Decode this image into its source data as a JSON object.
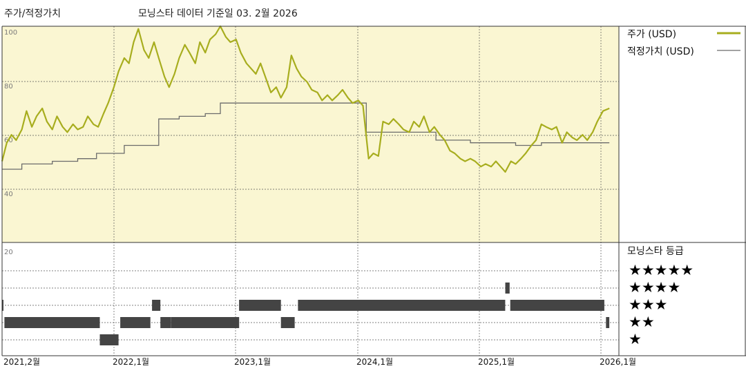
{
  "header": {
    "left_title": "주가/적정가치",
    "subtitle": "모닝스타 데이터 기준일 03. 2월 2026"
  },
  "legend": {
    "price_label": "주가 (USD)",
    "fair_value_label": "적정가치 (USD)",
    "rating_title": "모닝스타 등급"
  },
  "colors": {
    "price_line": "#a7ad1e",
    "fair_value_line": "#6b6b6b",
    "upper_panel_bg": "#faf6d2",
    "rating_bar": "#444444"
  },
  "chart_data": {
    "type": "line",
    "y_ticks": [
      "100",
      "80",
      "60",
      "40",
      "20"
    ],
    "x_ticks": [
      "2021,2월",
      "2022,1월",
      "2023,1월",
      "2024,1월",
      "2025,1월",
      "2026,1월"
    ],
    "x_range": [
      "2021-02",
      "2026-02"
    ],
    "y_range": [
      20,
      100
    ],
    "series": [
      {
        "name": "주가 (USD)",
        "points": [
          [
            "2021-02-01",
            49
          ],
          [
            "2021-02-15",
            56
          ],
          [
            "2021-03-01",
            59
          ],
          [
            "2021-03-15",
            57
          ],
          [
            "2021-04-01",
            61
          ],
          [
            "2021-04-15",
            68
          ],
          [
            "2021-05-01",
            62
          ],
          [
            "2021-05-15",
            66
          ],
          [
            "2021-06-01",
            69
          ],
          [
            "2021-06-15",
            64
          ],
          [
            "2021-07-01",
            61
          ],
          [
            "2021-07-15",
            66
          ],
          [
            "2021-08-01",
            62
          ],
          [
            "2021-08-15",
            60
          ],
          [
            "2021-09-01",
            63
          ],
          [
            "2021-09-15",
            61
          ],
          [
            "2021-10-01",
            62
          ],
          [
            "2021-10-15",
            66
          ],
          [
            "2021-11-01",
            63
          ],
          [
            "2021-11-15",
            62
          ],
          [
            "2021-12-01",
            67
          ],
          [
            "2021-12-15",
            71
          ],
          [
            "2022-01-01",
            77
          ],
          [
            "2022-01-15",
            83
          ],
          [
            "2022-02-01",
            88
          ],
          [
            "2022-02-15",
            86
          ],
          [
            "2022-03-01",
            94
          ],
          [
            "2022-03-15",
            99
          ],
          [
            "2022-04-01",
            91
          ],
          [
            "2022-04-15",
            88
          ],
          [
            "2022-05-01",
            94
          ],
          [
            "2022-05-15",
            88
          ],
          [
            "2022-06-01",
            81
          ],
          [
            "2022-06-15",
            77
          ],
          [
            "2022-07-01",
            82
          ],
          [
            "2022-07-15",
            88
          ],
          [
            "2022-08-01",
            93
          ],
          [
            "2022-08-15",
            90
          ],
          [
            "2022-09-01",
            86
          ],
          [
            "2022-09-15",
            94
          ],
          [
            "2022-10-01",
            90
          ],
          [
            "2022-10-15",
            95
          ],
          [
            "2022-11-01",
            97
          ],
          [
            "2022-11-15",
            100
          ],
          [
            "2022-12-01",
            96
          ],
          [
            "2022-12-15",
            94
          ],
          [
            "2023-01-01",
            95
          ],
          [
            "2023-01-15",
            90
          ],
          [
            "2023-02-01",
            86
          ],
          [
            "2023-02-15",
            84
          ],
          [
            "2023-03-01",
            82
          ],
          [
            "2023-03-15",
            86
          ],
          [
            "2023-04-01",
            80
          ],
          [
            "2023-04-15",
            75
          ],
          [
            "2023-05-01",
            77
          ],
          [
            "2023-05-15",
            73
          ],
          [
            "2023-06-01",
            77
          ],
          [
            "2023-06-15",
            89
          ],
          [
            "2023-07-01",
            84
          ],
          [
            "2023-07-15",
            81
          ],
          [
            "2023-08-01",
            79
          ],
          [
            "2023-08-15",
            76
          ],
          [
            "2023-09-01",
            75
          ],
          [
            "2023-09-15",
            72
          ],
          [
            "2023-10-01",
            74
          ],
          [
            "2023-10-15",
            72
          ],
          [
            "2023-11-01",
            74
          ],
          [
            "2023-11-15",
            76
          ],
          [
            "2023-12-01",
            73
          ],
          [
            "2023-12-15",
            71
          ],
          [
            "2024-01-01",
            72
          ],
          [
            "2024-01-15",
            70
          ],
          [
            "2024-02-01",
            50
          ],
          [
            "2024-02-15",
            52
          ],
          [
            "2024-03-01",
            51
          ],
          [
            "2024-03-15",
            64
          ],
          [
            "2024-04-01",
            63
          ],
          [
            "2024-04-15",
            65
          ],
          [
            "2024-05-01",
            63
          ],
          [
            "2024-05-15",
            61
          ],
          [
            "2024-06-01",
            60
          ],
          [
            "2024-06-15",
            64
          ],
          [
            "2024-07-01",
            62
          ],
          [
            "2024-07-15",
            66
          ],
          [
            "2024-08-01",
            60
          ],
          [
            "2024-08-15",
            62
          ],
          [
            "2024-09-01",
            59
          ],
          [
            "2024-09-15",
            57
          ],
          [
            "2024-10-01",
            53
          ],
          [
            "2024-10-15",
            52
          ],
          [
            "2024-11-01",
            50
          ],
          [
            "2024-11-15",
            49
          ],
          [
            "2024-12-01",
            50
          ],
          [
            "2024-12-15",
            49
          ],
          [
            "2025-01-01",
            47
          ],
          [
            "2025-01-15",
            48
          ],
          [
            "2025-02-01",
            47
          ],
          [
            "2025-02-15",
            49
          ],
          [
            "2025-03-01",
            47
          ],
          [
            "2025-03-15",
            45
          ],
          [
            "2025-04-01",
            49
          ],
          [
            "2025-04-15",
            48
          ],
          [
            "2025-05-01",
            50
          ],
          [
            "2025-05-15",
            52
          ],
          [
            "2025-06-01",
            55
          ],
          [
            "2025-06-15",
            57
          ],
          [
            "2025-07-01",
            63
          ],
          [
            "2025-07-15",
            62
          ],
          [
            "2025-08-01",
            61
          ],
          [
            "2025-08-15",
            62
          ],
          [
            "2025-09-01",
            56
          ],
          [
            "2025-09-15",
            60
          ],
          [
            "2025-10-01",
            58
          ],
          [
            "2025-10-15",
            57
          ],
          [
            "2025-11-01",
            59
          ],
          [
            "2025-11-15",
            57
          ],
          [
            "2025-12-01",
            60
          ],
          [
            "2025-12-15",
            64
          ],
          [
            "2026-01-01",
            68
          ],
          [
            "2026-01-20",
            69
          ]
        ]
      },
      {
        "name": "적정가치 (USD)",
        "steps": [
          [
            "2021-02-01",
            46
          ],
          [
            "2021-04-01",
            48
          ],
          [
            "2021-07-01",
            49
          ],
          [
            "2021-09-15",
            50
          ],
          [
            "2021-11-10",
            52
          ],
          [
            "2022-02-01",
            55
          ],
          [
            "2022-05-15",
            65
          ],
          [
            "2022-07-15",
            66
          ],
          [
            "2022-10-01",
            67
          ],
          [
            "2022-11-15",
            71
          ],
          [
            "2024-01-25",
            60
          ],
          [
            "2024-08-20",
            57
          ],
          [
            "2024-12-01",
            56
          ],
          [
            "2025-04-15",
            55
          ],
          [
            "2025-07-01",
            56
          ],
          [
            "2026-01-20",
            56
          ]
        ]
      }
    ],
    "ratings": {
      "levels": [
        "★★★★★",
        "★★★★",
        "★★★",
        "★★",
        "★"
      ],
      "segments": [
        [
          "2021-02-01",
          "2021-02-05",
          3
        ],
        [
          "2021-02-08",
          "2021-11-20",
          2
        ],
        [
          "2021-11-20",
          "2022-01-15",
          1
        ],
        [
          "2022-01-20",
          "2022-04-20",
          2
        ],
        [
          "2022-04-25",
          "2022-05-20",
          3
        ],
        [
          "2022-05-20",
          "2022-06-20",
          2
        ],
        [
          "2022-06-20",
          "2023-01-10",
          2
        ],
        [
          "2023-01-10",
          "2023-05-15",
          3
        ],
        [
          "2023-05-15",
          "2023-06-25",
          2
        ],
        [
          "2023-07-05",
          "2025-03-15",
          3
        ],
        [
          "2025-03-15",
          "2025-03-28",
          4
        ],
        [
          "2025-03-30",
          "2026-01-05",
          3
        ],
        [
          "2026-01-10",
          "2026-01-20",
          2
        ]
      ]
    }
  }
}
